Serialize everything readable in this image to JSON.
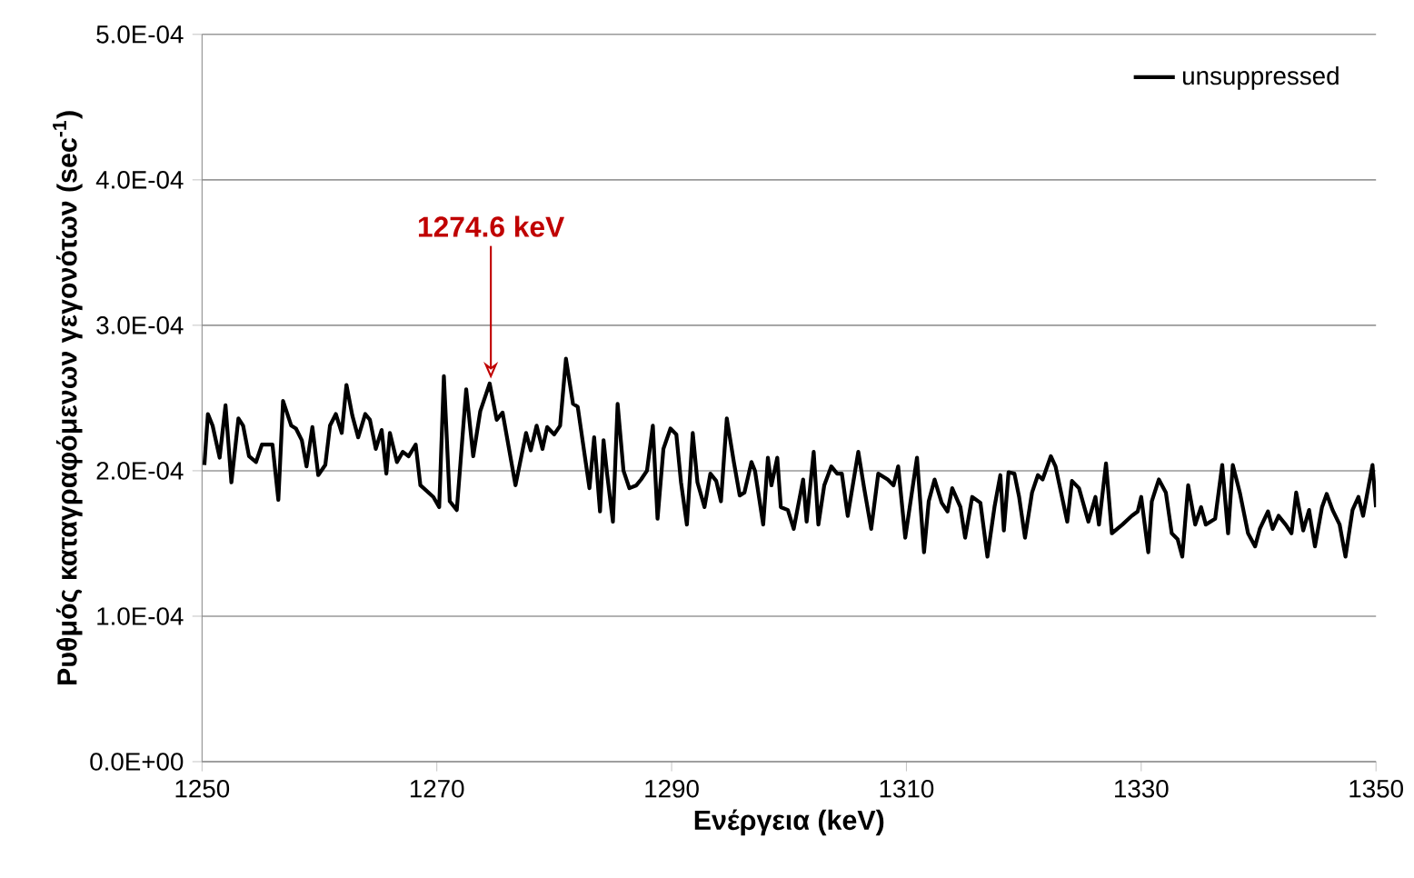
{
  "chart_data": {
    "type": "line",
    "xlabel": "Ενέργεια (keV)",
    "ylabel": "Ρυθμός καταγραφόμενων γεγονότων (sec$^{-1}$)",
    "xlim": [
      1250,
      1350
    ],
    "xticks": [
      1250,
      1270,
      1290,
      1310,
      1330,
      1350
    ],
    "ylim": [
      0,
      0.0005
    ],
    "yticks": [
      {
        "value": 0,
        "label": "0.0E+00"
      },
      {
        "value": 0.0001,
        "label": "1.0E-04"
      },
      {
        "value": 0.0002,
        "label": "2.0E-04"
      },
      {
        "value": 0.0003,
        "label": "3.0E-04"
      },
      {
        "value": 0.0004,
        "label": "4.0E-04"
      },
      {
        "value": 0.0005,
        "label": "5.0E-04"
      }
    ],
    "grid": "y",
    "legend": "top right",
    "marker": "none",
    "line_style": "solid",
    "annotations": [
      {
        "text": "1274.6 keV",
        "x": 1274.6,
        "y": 0.00026
      }
    ],
    "series": [
      {
        "name": "unsuppressed",
        "color": "#000000",
        "x": [
          1250.2,
          1250.5,
          1250.9,
          1251.5,
          1252.0,
          1252.5,
          1253.1,
          1253.5,
          1254.0,
          1254.6,
          1255.1,
          1256.0,
          1256.5,
          1256.9,
          1257.6,
          1258.0,
          1258.5,
          1258.9,
          1259.4,
          1259.9,
          1260.5,
          1260.9,
          1261.4,
          1261.9,
          1262.3,
          1262.8,
          1263.3,
          1263.9,
          1264.3,
          1264.8,
          1265.3,
          1265.7,
          1266.0,
          1266.6,
          1267.1,
          1267.6,
          1268.2,
          1268.6,
          1269.7,
          1270.2,
          1270.6,
          1271.1,
          1271.7,
          1272.5,
          1273.1,
          1273.7,
          1274.5,
          1275.1,
          1275.6,
          1276.7,
          1277.6,
          1278.0,
          1278.5,
          1279.0,
          1279.4,
          1280.0,
          1280.5,
          1281.0,
          1281.6,
          1282.0,
          1283.0,
          1283.4,
          1283.9,
          1284.2,
          1284.5,
          1285.0,
          1285.4,
          1285.9,
          1286.4,
          1287.0,
          1287.4,
          1287.9,
          1288.4,
          1288.8,
          1289.3,
          1289.9,
          1290.4,
          1290.8,
          1291.3,
          1291.8,
          1292.2,
          1292.8,
          1293.3,
          1293.8,
          1294.2,
          1294.7,
          1295.3,
          1295.8,
          1296.2,
          1296.8,
          1297.1,
          1297.8,
          1298.2,
          1298.5,
          1299.0,
          1299.3,
          1299.9,
          1300.4,
          1301.2,
          1301.5,
          1302.1,
          1302.5,
          1303.0,
          1303.6,
          1304.1,
          1304.5,
          1305.0,
          1305.9,
          1306.4,
          1307.0,
          1307.6,
          1308.4,
          1308.9,
          1309.3,
          1309.9,
          1310.9,
          1311.5,
          1311.9,
          1312.4,
          1313.0,
          1313.5,
          1313.9,
          1314.6,
          1315.0,
          1315.6,
          1316.3,
          1316.9,
          1317.5,
          1318.0,
          1318.3,
          1318.7,
          1319.2,
          1319.6,
          1320.1,
          1320.7,
          1321.2,
          1321.6,
          1322.3,
          1322.7,
          1323.7,
          1324.1,
          1324.7,
          1325.5,
          1326.1,
          1326.4,
          1327.0,
          1327.5,
          1328.4,
          1329.2,
          1329.7,
          1330.0,
          1330.6,
          1330.9,
          1331.5,
          1332.1,
          1332.6,
          1333.1,
          1333.5,
          1334.0,
          1334.6,
          1335.1,
          1335.5,
          1336.3,
          1336.9,
          1337.4,
          1337.8,
          1338.4,
          1339.1,
          1339.7,
          1340.1,
          1340.8,
          1341.2,
          1341.7,
          1342.3,
          1342.8,
          1343.2,
          1343.8,
          1344.3,
          1344.8,
          1345.4,
          1345.8,
          1346.3,
          1346.9,
          1347.4,
          1348.0,
          1348.5,
          1348.9,
          1349.7,
          1350.0
        ],
        "values": [
          0.000204,
          0.000239,
          0.000231,
          0.000209,
          0.000245,
          0.000192,
          0.000236,
          0.000231,
          0.00021,
          0.000206,
          0.000218,
          0.000218,
          0.00018,
          0.000248,
          0.000231,
          0.000229,
          0.000221,
          0.000203,
          0.00023,
          0.000197,
          0.000204,
          0.000231,
          0.000239,
          0.000226,
          0.000259,
          0.000238,
          0.000223,
          0.000239,
          0.000235,
          0.000215,
          0.000228,
          0.000198,
          0.000226,
          0.000206,
          0.000213,
          0.00021,
          0.000218,
          0.00019,
          0.000182,
          0.000175,
          0.000265,
          0.000179,
          0.000173,
          0.000256,
          0.00021,
          0.000241,
          0.00026,
          0.000235,
          0.00024,
          0.00019,
          0.000226,
          0.000214,
          0.000231,
          0.000215,
          0.00023,
          0.000225,
          0.000231,
          0.000277,
          0.000246,
          0.000244,
          0.000188,
          0.000223,
          0.000172,
          0.000221,
          0.000198,
          0.000165,
          0.000246,
          0.0002,
          0.000188,
          0.00019,
          0.000194,
          0.0002,
          0.000231,
          0.000167,
          0.000215,
          0.000229,
          0.000225,
          0.000192,
          0.000163,
          0.000226,
          0.000192,
          0.000175,
          0.000198,
          0.000193,
          0.000179,
          0.000236,
          0.000206,
          0.000183,
          0.000185,
          0.000206,
          0.0002,
          0.000163,
          0.000209,
          0.00019,
          0.000209,
          0.000175,
          0.000173,
          0.00016,
          0.000194,
          0.000165,
          0.000213,
          0.000163,
          0.00019,
          0.000203,
          0.000198,
          0.000198,
          0.000169,
          0.000213,
          0.000188,
          0.00016,
          0.000198,
          0.000194,
          0.00019,
          0.000203,
          0.000154,
          0.000209,
          0.000144,
          0.000179,
          0.000194,
          0.000178,
          0.000172,
          0.000188,
          0.000175,
          0.000154,
          0.000182,
          0.000178,
          0.000141,
          0.000175,
          0.000197,
          0.000159,
          0.000199,
          0.000198,
          0.000182,
          0.000154,
          0.000185,
          0.000197,
          0.000194,
          0.00021,
          0.000203,
          0.000165,
          0.000193,
          0.000188,
          0.000165,
          0.000182,
          0.000163,
          0.000205,
          0.000157,
          0.000163,
          0.000169,
          0.000172,
          0.000182,
          0.000144,
          0.000179,
          0.000194,
          0.000185,
          0.000157,
          0.000153,
          0.000141,
          0.00019,
          0.000163,
          0.000175,
          0.000163,
          0.000167,
          0.000204,
          0.000157,
          0.000204,
          0.000185,
          0.000157,
          0.000148,
          0.00016,
          0.000172,
          0.00016,
          0.000169,
          0.000163,
          0.000157,
          0.000185,
          0.000159,
          0.000173,
          0.000148,
          0.000175,
          0.000184,
          0.000173,
          0.000163,
          0.000141,
          0.000173,
          0.000182,
          0.000169,
          0.000204,
          0.000175
        ]
      }
    ]
  }
}
